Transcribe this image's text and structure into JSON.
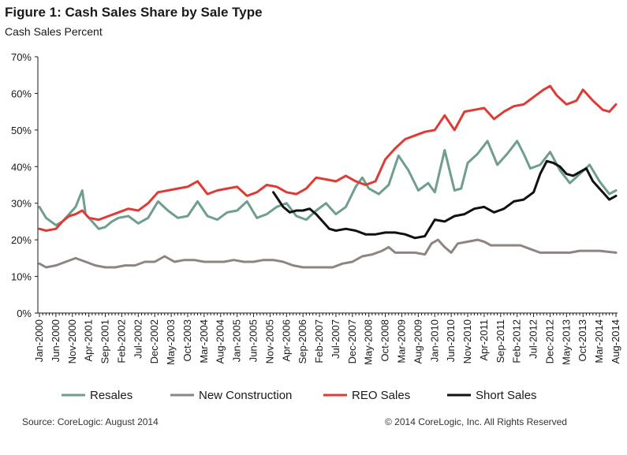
{
  "title": "Figure 1: Cash Sales Share by Sale Type",
  "subtitle": "Cash Sales Percent",
  "source": "Source: CoreLogic: August 2014",
  "copyright": "© 2014 CoreLogic, Inc. All Rights Reserved",
  "chart_data": {
    "type": "line",
    "ylim": [
      0,
      70
    ],
    "yticks": [
      0,
      10,
      20,
      30,
      40,
      50,
      60,
      70
    ],
    "ytick_labels": [
      "0%",
      "10%",
      "20%",
      "30%",
      "40%",
      "50%",
      "60%",
      "70%"
    ],
    "grid": false,
    "legend_position": "bottom",
    "x_start": "Jan-2000",
    "x_end": "Aug-2014",
    "x_tick_labels": [
      "Jan-2000",
      "Jun-2000",
      "Nov-2000",
      "Apr-2001",
      "Sep-2001",
      "Feb-2002",
      "Jul-2002",
      "Dec-2002",
      "May-2003",
      "Oct-2003",
      "Mar-2004",
      "Aug-2004",
      "Jan-2005",
      "Jun-2005",
      "Nov-2005",
      "Apr-2006",
      "Sep-2006",
      "Feb-2007",
      "Jul-2007",
      "Dec-2007",
      "May-2008",
      "Oct-2008",
      "Mar-2009",
      "Aug-2009",
      "Jan-2010",
      "Jun-2010",
      "Nov-2010",
      "Apr-2011",
      "Sep-2011",
      "Feb-2012",
      "Jul-2012",
      "Dec-2012",
      "May-2013",
      "Oct-2013",
      "Mar-2014",
      "Aug-2014"
    ],
    "series": [
      {
        "name": "Resales",
        "color": "#6f9e8e",
        "points": [
          [
            "Jan-2000",
            29
          ],
          [
            "Mar-2000",
            26
          ],
          [
            "Jun-2000",
            24
          ],
          [
            "Aug-2000",
            25
          ],
          [
            "Oct-2000",
            27
          ],
          [
            "Dec-2000",
            29
          ],
          [
            "Feb-2001",
            33.5
          ],
          [
            "Mar-2001",
            27
          ],
          [
            "May-2001",
            25
          ],
          [
            "Jul-2001",
            23
          ],
          [
            "Sep-2001",
            23.5
          ],
          [
            "Nov-2001",
            25
          ],
          [
            "Jan-2002",
            26
          ],
          [
            "Apr-2002",
            26.5
          ],
          [
            "Jul-2002",
            24.5
          ],
          [
            "Oct-2002",
            26
          ],
          [
            "Jan-2003",
            30.5
          ],
          [
            "Apr-2003",
            28
          ],
          [
            "Jul-2003",
            26
          ],
          [
            "Oct-2003",
            26.5
          ],
          [
            "Jan-2004",
            30.5
          ],
          [
            "Apr-2004",
            26.5
          ],
          [
            "Jul-2004",
            25.5
          ],
          [
            "Oct-2004",
            27.5
          ],
          [
            "Jan-2005",
            28
          ],
          [
            "Apr-2005",
            30.5
          ],
          [
            "Jul-2005",
            26
          ],
          [
            "Oct-2005",
            27
          ],
          [
            "Jan-2006",
            29
          ],
          [
            "Apr-2006",
            30
          ],
          [
            "Jul-2006",
            26.5
          ],
          [
            "Oct-2006",
            25.5
          ],
          [
            "Jan-2007",
            28
          ],
          [
            "Apr-2007",
            30
          ],
          [
            "Jul-2007",
            27
          ],
          [
            "Oct-2007",
            29
          ],
          [
            "Jan-2008",
            34.5
          ],
          [
            "Mar-2008",
            37
          ],
          [
            "May-2008",
            34
          ],
          [
            "Aug-2008",
            32.5
          ],
          [
            "Nov-2008",
            35
          ],
          [
            "Feb-2009",
            43
          ],
          [
            "May-2009",
            39
          ],
          [
            "Aug-2009",
            33.5
          ],
          [
            "Nov-2009",
            35.5
          ],
          [
            "Jan-2010",
            33
          ],
          [
            "Apr-2010",
            44.5
          ],
          [
            "Jul-2010",
            33.5
          ],
          [
            "Sep-2010",
            34
          ],
          [
            "Nov-2010",
            41
          ],
          [
            "Feb-2011",
            43.5
          ],
          [
            "May-2011",
            47
          ],
          [
            "Aug-2011",
            40.5
          ],
          [
            "Nov-2011",
            43.5
          ],
          [
            "Feb-2012",
            47
          ],
          [
            "Apr-2012",
            43.5
          ],
          [
            "Jun-2012",
            39.5
          ],
          [
            "Sep-2012",
            40.5
          ],
          [
            "Dec-2012",
            44
          ],
          [
            "Mar-2013",
            39
          ],
          [
            "Jun-2013",
            35.5
          ],
          [
            "Sep-2013",
            38
          ],
          [
            "Dec-2013",
            40.5
          ],
          [
            "Mar-2014",
            36
          ],
          [
            "Jun-2014",
            32.5
          ],
          [
            "Aug-2014",
            33.5
          ]
        ]
      },
      {
        "name": "New Construction",
        "color": "#8e8481",
        "points": [
          [
            "Jan-2000",
            13.5
          ],
          [
            "Mar-2000",
            12.5
          ],
          [
            "Jun-2000",
            13
          ],
          [
            "Sep-2000",
            14
          ],
          [
            "Dec-2000",
            15
          ],
          [
            "Mar-2001",
            14
          ],
          [
            "Jun-2001",
            13
          ],
          [
            "Sep-2001",
            12.5
          ],
          [
            "Dec-2001",
            12.5
          ],
          [
            "Mar-2002",
            13
          ],
          [
            "Jun-2002",
            13
          ],
          [
            "Sep-2002",
            14
          ],
          [
            "Dec-2002",
            14
          ],
          [
            "Mar-2003",
            15.5
          ],
          [
            "Jun-2003",
            14
          ],
          [
            "Sep-2003",
            14.5
          ],
          [
            "Dec-2003",
            14.5
          ],
          [
            "Mar-2004",
            14
          ],
          [
            "Jun-2004",
            14
          ],
          [
            "Sep-2004",
            14
          ],
          [
            "Dec-2004",
            14.5
          ],
          [
            "Mar-2005",
            14
          ],
          [
            "Jun-2005",
            14
          ],
          [
            "Sep-2005",
            14.5
          ],
          [
            "Dec-2005",
            14.5
          ],
          [
            "Mar-2006",
            14
          ],
          [
            "Jun-2006",
            13
          ],
          [
            "Sep-2006",
            12.5
          ],
          [
            "Dec-2006",
            12.5
          ],
          [
            "Mar-2007",
            12.5
          ],
          [
            "Jun-2007",
            12.5
          ],
          [
            "Sep-2007",
            13.5
          ],
          [
            "Dec-2007",
            14
          ],
          [
            "Mar-2008",
            15.5
          ],
          [
            "Jun-2008",
            16
          ],
          [
            "Sep-2008",
            17
          ],
          [
            "Nov-2008",
            18
          ],
          [
            "Jan-2009",
            16.5
          ],
          [
            "Apr-2009",
            16.5
          ],
          [
            "Jul-2009",
            16.5
          ],
          [
            "Oct-2009",
            16
          ],
          [
            "Dec-2009",
            19
          ],
          [
            "Feb-2010",
            20
          ],
          [
            "Apr-2010",
            18
          ],
          [
            "Jun-2010",
            16.5
          ],
          [
            "Aug-2010",
            19
          ],
          [
            "Nov-2010",
            19.5
          ],
          [
            "Feb-2011",
            20
          ],
          [
            "Apr-2011",
            19.5
          ],
          [
            "Jun-2011",
            18.5
          ],
          [
            "Sep-2011",
            18.5
          ],
          [
            "Dec-2011",
            18.5
          ],
          [
            "Mar-2012",
            18.5
          ],
          [
            "Jun-2012",
            17.5
          ],
          [
            "Sep-2012",
            16.5
          ],
          [
            "Dec-2012",
            16.5
          ],
          [
            "Mar-2013",
            16.5
          ],
          [
            "Jun-2013",
            16.5
          ],
          [
            "Sep-2013",
            17
          ],
          [
            "Dec-2013",
            17
          ],
          [
            "Mar-2014",
            17
          ],
          [
            "Aug-2014",
            16.5
          ]
        ]
      },
      {
        "name": "REO Sales",
        "color": "#e03a34",
        "points": [
          [
            "Jan-2000",
            23
          ],
          [
            "Mar-2000",
            22.5
          ],
          [
            "Jun-2000",
            23
          ],
          [
            "Aug-2000",
            25
          ],
          [
            "Oct-2000",
            26.5
          ],
          [
            "Dec-2000",
            27
          ],
          [
            "Feb-2001",
            28
          ],
          [
            "Apr-2001",
            26
          ],
          [
            "Jul-2001",
            25.5
          ],
          [
            "Oct-2001",
            26.5
          ],
          [
            "Jan-2002",
            27.5
          ],
          [
            "Apr-2002",
            28.5
          ],
          [
            "Jul-2002",
            28
          ],
          [
            "Oct-2002",
            30
          ],
          [
            "Jan-2003",
            33
          ],
          [
            "Apr-2003",
            33.5
          ],
          [
            "Jul-2003",
            34
          ],
          [
            "Oct-2003",
            34.5
          ],
          [
            "Jan-2004",
            36
          ],
          [
            "Apr-2004",
            32.5
          ],
          [
            "Jul-2004",
            33.5
          ],
          [
            "Oct-2004",
            34
          ],
          [
            "Jan-2005",
            34.5
          ],
          [
            "Apr-2005",
            32
          ],
          [
            "Jul-2005",
            33
          ],
          [
            "Oct-2005",
            35
          ],
          [
            "Jan-2006",
            34.5
          ],
          [
            "Apr-2006",
            33
          ],
          [
            "Jul-2006",
            32.5
          ],
          [
            "Oct-2006",
            34
          ],
          [
            "Jan-2007",
            37
          ],
          [
            "Apr-2007",
            36.5
          ],
          [
            "Jul-2007",
            36
          ],
          [
            "Oct-2007",
            37.5
          ],
          [
            "Jan-2008",
            36
          ],
          [
            "Apr-2008",
            35
          ],
          [
            "Jul-2008",
            36
          ],
          [
            "Oct-2008",
            42
          ],
          [
            "Jan-2009",
            45
          ],
          [
            "Apr-2009",
            47.5
          ],
          [
            "Jul-2009",
            48.5
          ],
          [
            "Oct-2009",
            49.5
          ],
          [
            "Jan-2010",
            50
          ],
          [
            "Apr-2010",
            54
          ],
          [
            "Jul-2010",
            50
          ],
          [
            "Oct-2010",
            55
          ],
          [
            "Jan-2011",
            55.5
          ],
          [
            "Apr-2011",
            56
          ],
          [
            "Jul-2011",
            53
          ],
          [
            "Oct-2011",
            55
          ],
          [
            "Jan-2012",
            56.5
          ],
          [
            "Apr-2012",
            57
          ],
          [
            "Jul-2012",
            59
          ],
          [
            "Oct-2012",
            61
          ],
          [
            "Dec-2012",
            62
          ],
          [
            "Feb-2013",
            59.5
          ],
          [
            "May-2013",
            57
          ],
          [
            "Aug-2013",
            58
          ],
          [
            "Oct-2013",
            61
          ],
          [
            "Jan-2014",
            58
          ],
          [
            "Apr-2014",
            55.5
          ],
          [
            "Jun-2014",
            55
          ],
          [
            "Aug-2014",
            57
          ]
        ]
      },
      {
        "name": "Short Sales",
        "color": "#111111",
        "points": [
          [
            "Dec-2005",
            33
          ],
          [
            "Mar-2006",
            29
          ],
          [
            "May-2006",
            27.5
          ],
          [
            "Jul-2006",
            28
          ],
          [
            "Sep-2006",
            28
          ],
          [
            "Nov-2006",
            28.5
          ],
          [
            "Jan-2007",
            27
          ],
          [
            "Mar-2007",
            25
          ],
          [
            "May-2007",
            23
          ],
          [
            "Jul-2007",
            22.5
          ],
          [
            "Oct-2007",
            23
          ],
          [
            "Jan-2008",
            22.5
          ],
          [
            "Apr-2008",
            21.5
          ],
          [
            "Jul-2008",
            21.5
          ],
          [
            "Oct-2008",
            22
          ],
          [
            "Jan-2009",
            22
          ],
          [
            "Apr-2009",
            21.5
          ],
          [
            "Jul-2009",
            20.5
          ],
          [
            "Oct-2009",
            21
          ],
          [
            "Jan-2010",
            25.5
          ],
          [
            "Apr-2010",
            25
          ],
          [
            "Jul-2010",
            26.5
          ],
          [
            "Oct-2010",
            27
          ],
          [
            "Jan-2011",
            28.5
          ],
          [
            "Apr-2011",
            29
          ],
          [
            "Jul-2011",
            27.5
          ],
          [
            "Oct-2011",
            28.5
          ],
          [
            "Jan-2012",
            30.5
          ],
          [
            "Apr-2012",
            31
          ],
          [
            "Jul-2012",
            33
          ],
          [
            "Sep-2012",
            38
          ],
          [
            "Nov-2012",
            41.5
          ],
          [
            "Jan-2013",
            41
          ],
          [
            "Mar-2013",
            40
          ],
          [
            "May-2013",
            38
          ],
          [
            "Jul-2013",
            37.5
          ],
          [
            "Sep-2013",
            38.5
          ],
          [
            "Nov-2013",
            39.5
          ],
          [
            "Jan-2014",
            36
          ],
          [
            "Apr-2014",
            33
          ],
          [
            "Jun-2014",
            31
          ],
          [
            "Aug-2014",
            32
          ]
        ]
      }
    ]
  }
}
